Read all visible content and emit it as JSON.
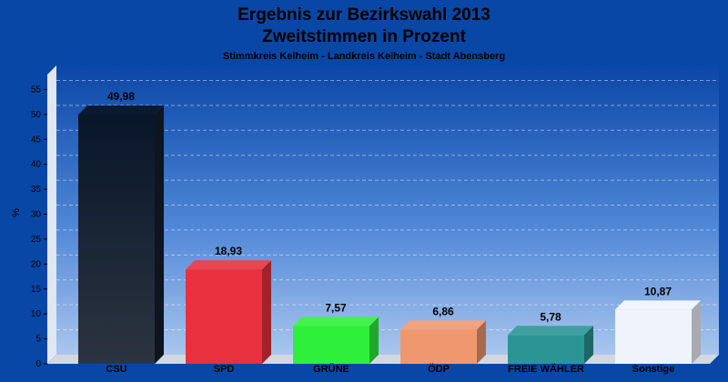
{
  "chart_data": {
    "type": "bar",
    "title": "Ergebnis zur Bezirkswahl 2013",
    "subtitle": "Zweitstimmen in Prozent",
    "caption": "Stimmkreis Kelheim - Landkreis Kelheim - Stadt Abensberg",
    "ylabel": "%",
    "ylim": [
      0,
      58
    ],
    "yticks": [
      0,
      5,
      10,
      15,
      20,
      25,
      30,
      35,
      40,
      45,
      50,
      55
    ],
    "grid": true,
    "categories": [
      "CSU",
      "SPD",
      "GRÜNE",
      "ÖDP",
      "FREIE WÄHLER",
      "Sonstige"
    ],
    "values": [
      49.98,
      18.93,
      7.57,
      6.86,
      5.78,
      10.87
    ],
    "value_labels": [
      "49,98",
      "18,93",
      "7,57",
      "6,86",
      "5,78",
      "10,87"
    ],
    "colors": [
      "#141e2c",
      "#e8303f",
      "#2ef03a",
      "#ef9870",
      "#2b9595",
      "#eef3fc"
    ],
    "background_color": "#0847a6"
  }
}
